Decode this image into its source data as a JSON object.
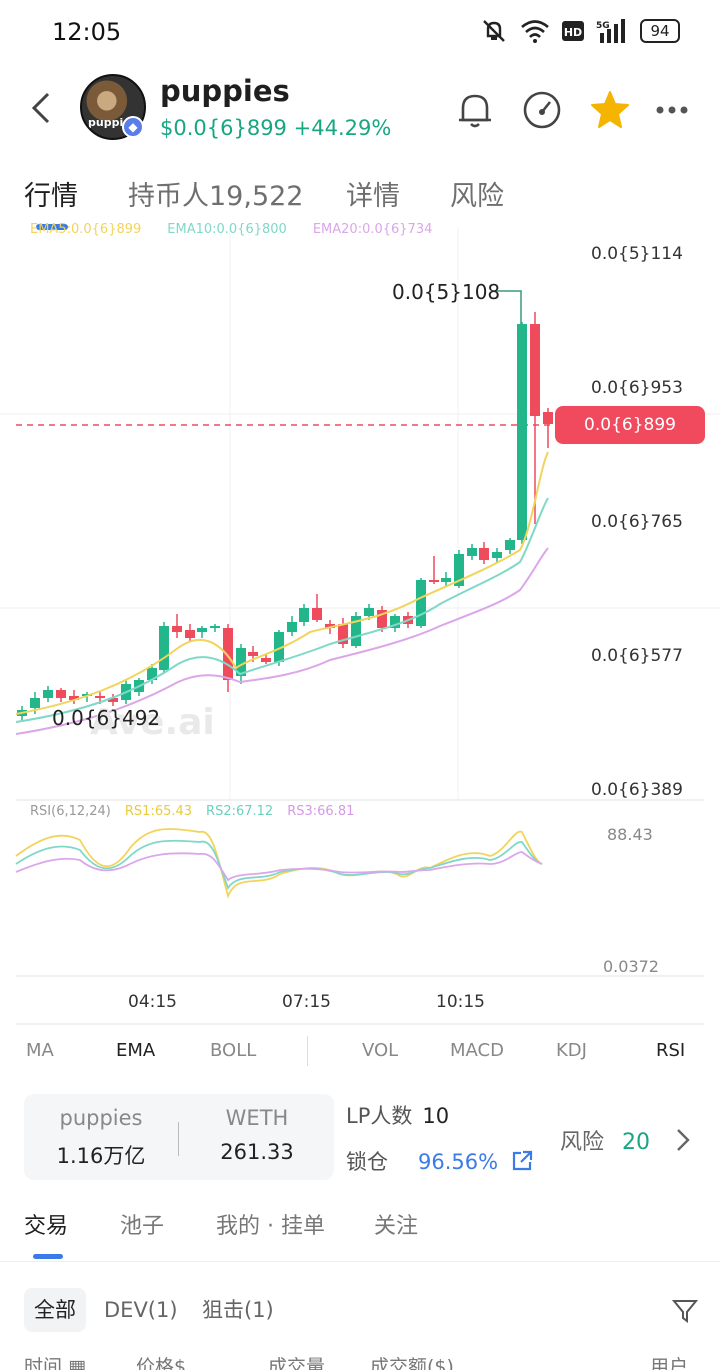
{
  "status_bar": {
    "time": "12:05",
    "battery": "94"
  },
  "header": {
    "token_name": "puppies",
    "price": "$0.0{6}899",
    "change": "+44.29%",
    "avatar_text": "puppies"
  },
  "tabs": [
    {
      "label": "行情"
    },
    {
      "label": "持币人19,522"
    },
    {
      "label": "详情"
    },
    {
      "label": "风险"
    }
  ],
  "chart": {
    "ema_legend": [
      "EMA5:0.0{6}899",
      "EMA10:0.0{6}800",
      "EMA20:0.0{6}734"
    ],
    "price_axis": [
      "0.0{5}114",
      "0.0{6}953",
      "0.0{6}765",
      "0.0{6}577",
      "0.0{6}389"
    ],
    "current_price": "0.0{6}899",
    "peak_label": "0.0{5}108",
    "low_label": "0.0{6}492",
    "watermark": "Ave.ai",
    "rsi_legend": {
      "name": "RSI(6,12,24)",
      "rs1": "RS1:65.43",
      "rs2": "RS2:67.12",
      "rs3": "RS3:66.81"
    },
    "rsi_high": "88.43",
    "rsi_low": "0.0372",
    "time_labels": [
      "04:15",
      "07:15",
      "10:15"
    ],
    "colors": {
      "up": "#22b68a",
      "down": "#ee4b5d",
      "ema5": "#f2d45c",
      "ema10": "#7fd8c8",
      "ema20": "#dba6ea"
    }
  },
  "indicators": [
    {
      "label": "MA"
    },
    {
      "label": "EMA"
    },
    {
      "label": "BOLL"
    },
    {
      "label": "VOL"
    },
    {
      "label": "MACD"
    },
    {
      "label": "KDJ"
    },
    {
      "label": "RSI"
    }
  ],
  "pool": {
    "token_label": "puppies",
    "token_amount": "1.16万亿",
    "quote_label": "WETH",
    "quote_amount": "261.33"
  },
  "lp": {
    "label": "LP人数",
    "value": "10"
  },
  "lock": {
    "label": "锁仓",
    "value": "96.56%"
  },
  "risk": {
    "label": "风险",
    "value": "20"
  },
  "bottom_tabs": [
    {
      "label": "交易"
    },
    {
      "label": "池子"
    },
    {
      "label": "我的 · 挂单"
    },
    {
      "label": "关注"
    }
  ],
  "filters": [
    {
      "label": "全部"
    },
    {
      "label": "DEV(1)"
    },
    {
      "label": "狙击(1)"
    }
  ],
  "columns": [
    {
      "label": "时间"
    },
    {
      "label": "价格$"
    },
    {
      "label": "成交量"
    },
    {
      "label": "成交额($)"
    },
    {
      "label": "用户"
    }
  ]
}
